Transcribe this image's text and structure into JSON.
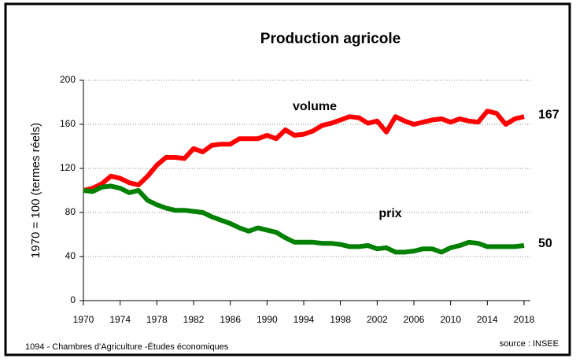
{
  "chart_data": {
    "type": "line",
    "title": "Production agricole",
    "y_label": "1970 = 100 (termes réels)",
    "footer_left": "1094 - Chambres d'Agriculture -Études économiques",
    "footer_right": "source : INSEE",
    "x": [
      1970,
      1971,
      1972,
      1973,
      1974,
      1975,
      1976,
      1977,
      1978,
      1979,
      1980,
      1981,
      1982,
      1983,
      1984,
      1985,
      1986,
      1987,
      1988,
      1989,
      1990,
      1991,
      1992,
      1993,
      1994,
      1995,
      1996,
      1997,
      1998,
      1999,
      2000,
      2001,
      2002,
      2003,
      2004,
      2005,
      2006,
      2007,
      2008,
      2009,
      2010,
      2011,
      2012,
      2013,
      2014,
      2015,
      2016,
      2017,
      2018
    ],
    "series": [
      {
        "name": "volume",
        "color": "#ff0000",
        "values": [
          100,
          102,
          106,
          113,
          111,
          107,
          105,
          113,
          123,
          130,
          130,
          129,
          138,
          135,
          141,
          142,
          142,
          147,
          147,
          147,
          150,
          147,
          155,
          150,
          151,
          154,
          159,
          161,
          164,
          167,
          166,
          161,
          163,
          153,
          167,
          163,
          160,
          162,
          164,
          165,
          162,
          165,
          163,
          162,
          172,
          170,
          160,
          165,
          167
        ]
      },
      {
        "name": "prix",
        "color": "#008000",
        "values": [
          100,
          99,
          103,
          104,
          102,
          98,
          100,
          91,
          87,
          84,
          82,
          82,
          81,
          80,
          76,
          73,
          70,
          66,
          63,
          66,
          64,
          62,
          57,
          53,
          53,
          53,
          52,
          52,
          51,
          49,
          49,
          50,
          47,
          48,
          44,
          44,
          45,
          47,
          47,
          44,
          48,
          50,
          53,
          52,
          49,
          49,
          49,
          49,
          50
        ]
      }
    ],
    "xlim": [
      1970,
      2018
    ],
    "xticks": [
      1970,
      1974,
      1978,
      1982,
      1986,
      1990,
      1994,
      1998,
      2002,
      2006,
      2010,
      2014,
      2018
    ],
    "ylim": [
      0,
      200
    ],
    "yticks": [
      0,
      40,
      80,
      120,
      160,
      200
    ],
    "grid": true
  }
}
